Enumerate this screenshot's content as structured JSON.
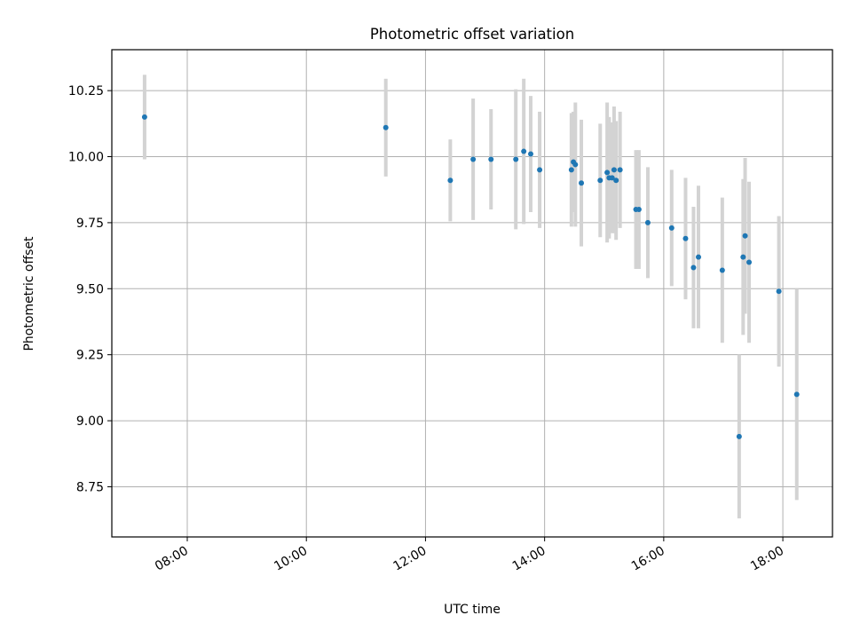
{
  "chart_data": {
    "type": "scatter",
    "title": "Photometric offset variation",
    "xlabel": "UTC time",
    "ylabel": "Photometric offset",
    "grid": true,
    "x_axis": {
      "type": "time",
      "range": [
        "06:44",
        "18:50"
      ],
      "ticks": [
        "08:00",
        "10:00",
        "12:00",
        "14:00",
        "16:00",
        "18:00"
      ]
    },
    "y_axis": {
      "range": [
        8.56,
        10.405
      ],
      "ticks": [
        "8.75",
        "9.00",
        "9.25",
        "9.50",
        "9.75",
        "10.00",
        "10.25"
      ]
    },
    "colors": {
      "marker": "#1f77b4",
      "errorbar": "#d3d3d3",
      "grid": "#b0b0b0"
    },
    "points": [
      {
        "time": "07:17",
        "y": 10.15,
        "err": 0.16
      },
      {
        "time": "11:20",
        "y": 10.11,
        "err": 0.185
      },
      {
        "time": "12:25",
        "y": 9.91,
        "err": 0.155
      },
      {
        "time": "12:48",
        "y": 9.99,
        "err": 0.23
      },
      {
        "time": "13:06",
        "y": 9.99,
        "err": 0.19
      },
      {
        "time": "13:31",
        "y": 9.99,
        "err": 0.265
      },
      {
        "time": "13:39",
        "y": 10.02,
        "err": 0.275
      },
      {
        "time": "13:46",
        "y": 10.01,
        "err": 0.22
      },
      {
        "time": "13:55",
        "y": 9.95,
        "err": 0.22
      },
      {
        "time": "14:27",
        "y": 9.95,
        "err": 0.215
      },
      {
        "time": "14:29",
        "y": 9.98,
        "err": 0.19
      },
      {
        "time": "14:31",
        "y": 9.97,
        "err": 0.235
      },
      {
        "time": "14:37",
        "y": 9.9,
        "err": 0.24
      },
      {
        "time": "14:56",
        "y": 9.91,
        "err": 0.215
      },
      {
        "time": "15:03",
        "y": 9.94,
        "err": 0.265
      },
      {
        "time": "15:05",
        "y": 9.92,
        "err": 0.23
      },
      {
        "time": "15:08",
        "y": 9.92,
        "err": 0.21
      },
      {
        "time": "15:10",
        "y": 9.95,
        "err": 0.24
      },
      {
        "time": "15:12",
        "y": 9.91,
        "err": 0.225
      },
      {
        "time": "15:16",
        "y": 9.95,
        "err": 0.22
      },
      {
        "time": "15:32",
        "y": 9.8,
        "err": 0.225
      },
      {
        "time": "15:35",
        "y": 9.8,
        "err": 0.225
      },
      {
        "time": "15:44",
        "y": 9.75,
        "err": 0.21
      },
      {
        "time": "16:08",
        "y": 9.73,
        "err": 0.22
      },
      {
        "time": "16:22",
        "y": 9.69,
        "err": 0.23
      },
      {
        "time": "16:30",
        "y": 9.58,
        "err": 0.23
      },
      {
        "time": "16:35",
        "y": 9.62,
        "err": 0.27
      },
      {
        "time": "16:59",
        "y": 9.57,
        "err": 0.275
      },
      {
        "time": "17:16",
        "y": 8.94,
        "err": 0.31
      },
      {
        "time": "17:20",
        "y": 9.62,
        "err": 0.295
      },
      {
        "time": "17:22",
        "y": 9.7,
        "err": 0.295
      },
      {
        "time": "17:26",
        "y": 9.6,
        "err": 0.305
      },
      {
        "time": "17:56",
        "y": 9.49,
        "err": 0.285
      },
      {
        "time": "18:14",
        "y": 9.1,
        "err": 0.4
      }
    ]
  }
}
